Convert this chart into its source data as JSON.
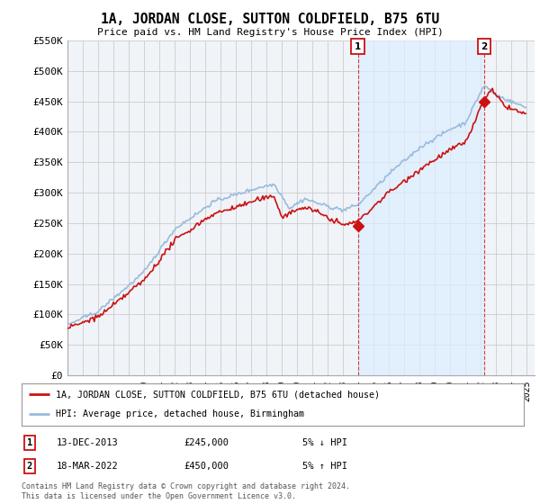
{
  "title": "1A, JORDAN CLOSE, SUTTON COLDFIELD, B75 6TU",
  "subtitle": "Price paid vs. HM Land Registry's House Price Index (HPI)",
  "ylabel_ticks": [
    "£0",
    "£50K",
    "£100K",
    "£150K",
    "£200K",
    "£250K",
    "£300K",
    "£350K",
    "£400K",
    "£450K",
    "£500K",
    "£550K"
  ],
  "ylim": [
    0,
    550000
  ],
  "xlim_start": 1995.0,
  "xlim_end": 2025.5,
  "hpi_color": "#99bbdd",
  "price_color": "#cc1111",
  "shade_color": "#ddeeff",
  "marker1_x": 2013.96,
  "marker1_y": 245000,
  "marker2_x": 2022.21,
  "marker2_y": 450000,
  "legend_line1": "1A, JORDAN CLOSE, SUTTON COLDFIELD, B75 6TU (detached house)",
  "legend_line2": "HPI: Average price, detached house, Birmingham",
  "table_row1": [
    "1",
    "13-DEC-2013",
    "£245,000",
    "5% ↓ HPI"
  ],
  "table_row2": [
    "2",
    "18-MAR-2022",
    "£450,000",
    "5% ↑ HPI"
  ],
  "footer1": "Contains HM Land Registry data © Crown copyright and database right 2024.",
  "footer2": "This data is licensed under the Open Government Licence v3.0.",
  "bg_color": "#ffffff",
  "grid_color": "#cccccc",
  "vline_color": "#cc1111",
  "plot_bg": "#f0f4f8"
}
